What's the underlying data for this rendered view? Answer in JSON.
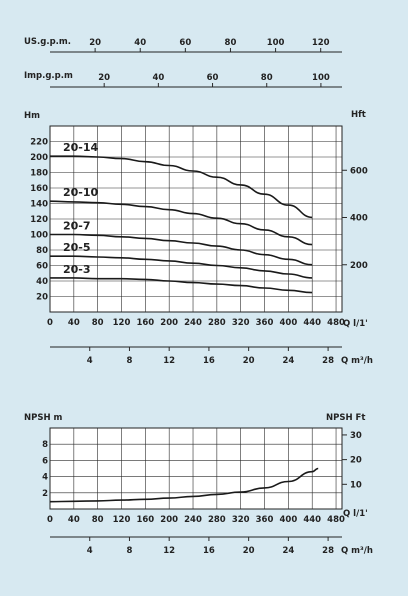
{
  "colors": {
    "background": "#d7e9f1",
    "plot_bg": "#ffffff",
    "grid": "#2a2a2a",
    "curve": "#1a1a1a"
  },
  "chart_data": [
    {
      "type": "line",
      "title": "",
      "scales": {
        "usgpm": {
          "label": "US.g.p.m.",
          "ticks": [
            20,
            40,
            60,
            80,
            100,
            120
          ],
          "tick_labels": [
            "20",
            "40",
            "60",
            "80",
            "100",
            "120"
          ]
        },
        "impgpm": {
          "label": "Imp.g.p.m",
          "ticks": [
            20,
            40,
            60,
            80,
            100
          ],
          "tick_labels": [
            "20",
            "40",
            "60",
            "80",
            "100"
          ]
        }
      },
      "xlabel": "Q l/1'",
      "xlabel2": "Q m³/h",
      "ylabel": "Hm",
      "ylabel2": "Hft",
      "xlim": [
        0,
        490
      ],
      "ylim": [
        0,
        240
      ],
      "x_ticks": [
        0,
        40,
        80,
        120,
        160,
        200,
        240,
        280,
        320,
        360,
        400,
        440,
        480
      ],
      "x_tick_labels": [
        "0",
        "40",
        "80",
        "120",
        "160",
        "200",
        "240",
        "280",
        "320",
        "360",
        "400",
        "440",
        "480"
      ],
      "x2_ticks": [
        4,
        8,
        12,
        16,
        20,
        24,
        28
      ],
      "x2_tick_labels": [
        "4",
        "8",
        "12",
        "16",
        "20",
        "24",
        "28"
      ],
      "y_ticks": [
        20,
        40,
        60,
        80,
        100,
        120,
        140,
        160,
        180,
        200,
        220
      ],
      "y_tick_labels": [
        "20",
        "40",
        "60",
        "80",
        "100",
        "120",
        "140",
        "160",
        "180",
        "200",
        "220"
      ],
      "y2_ticks": [
        200,
        400,
        600
      ],
      "y2_tick_labels": [
        "200",
        "400",
        "600"
      ],
      "grid": true,
      "series": [
        {
          "name": "20-14",
          "x": [
            0,
            40,
            80,
            120,
            160,
            200,
            240,
            280,
            320,
            360,
            400,
            440
          ],
          "y": [
            201,
            201,
            200,
            198,
            194,
            189,
            182,
            174,
            164,
            152,
            138,
            122
          ]
        },
        {
          "name": "20-10",
          "x": [
            0,
            40,
            80,
            120,
            160,
            200,
            240,
            280,
            320,
            360,
            400,
            440
          ],
          "y": [
            143,
            142,
            141,
            139,
            136,
            132,
            127,
            121,
            114,
            106,
            97,
            87
          ]
        },
        {
          "name": "20-7",
          "x": [
            0,
            40,
            80,
            120,
            160,
            200,
            240,
            280,
            320,
            360,
            400,
            440
          ],
          "y": [
            100,
            100,
            99,
            97,
            95,
            92,
            89,
            85,
            80,
            74,
            68,
            61
          ]
        },
        {
          "name": "20-5",
          "x": [
            0,
            40,
            80,
            120,
            160,
            200,
            240,
            280,
            320,
            360,
            400,
            440
          ],
          "y": [
            72,
            72,
            71,
            70,
            68,
            66,
            63,
            60,
            57,
            53,
            49,
            44
          ]
        },
        {
          "name": "20-3",
          "x": [
            0,
            40,
            80,
            120,
            160,
            200,
            240,
            280,
            320,
            360,
            400,
            440
          ],
          "y": [
            44,
            44,
            43,
            43,
            42,
            40,
            38,
            36,
            34,
            31,
            28,
            25
          ]
        }
      ]
    },
    {
      "type": "line",
      "title": "",
      "xlabel": "Q l/1'",
      "xlabel2": "Q m³/h",
      "ylabel": "NPSH m",
      "ylabel2": "NPSH  Ft",
      "xlim": [
        0,
        490
      ],
      "ylim": [
        0,
        10
      ],
      "x_ticks": [
        0,
        40,
        80,
        120,
        160,
        200,
        240,
        280,
        320,
        360,
        400,
        440,
        480
      ],
      "x_tick_labels": [
        "0",
        "40",
        "80",
        "120",
        "160",
        "200",
        "240",
        "280",
        "320",
        "360",
        "400",
        "440",
        "480"
      ],
      "x2_ticks": [
        4,
        8,
        12,
        16,
        20,
        24,
        28
      ],
      "x2_tick_labels": [
        "4",
        "8",
        "12",
        "16",
        "20",
        "24",
        "28"
      ],
      "y_ticks": [
        2,
        4,
        6,
        8
      ],
      "y_tick_labels": [
        "2",
        "4",
        "6",
        "8"
      ],
      "y2_ticks": [
        10,
        20,
        30
      ],
      "y2_tick_labels": [
        "10",
        "20",
        "30"
      ],
      "grid": true,
      "series": [
        {
          "name": "",
          "x": [
            0,
            40,
            80,
            120,
            160,
            200,
            240,
            280,
            320,
            360,
            400,
            440,
            450
          ],
          "y": [
            0.9,
            0.95,
            1.0,
            1.1,
            1.2,
            1.35,
            1.55,
            1.8,
            2.1,
            2.6,
            3.4,
            4.6,
            5.0
          ]
        }
      ]
    }
  ]
}
